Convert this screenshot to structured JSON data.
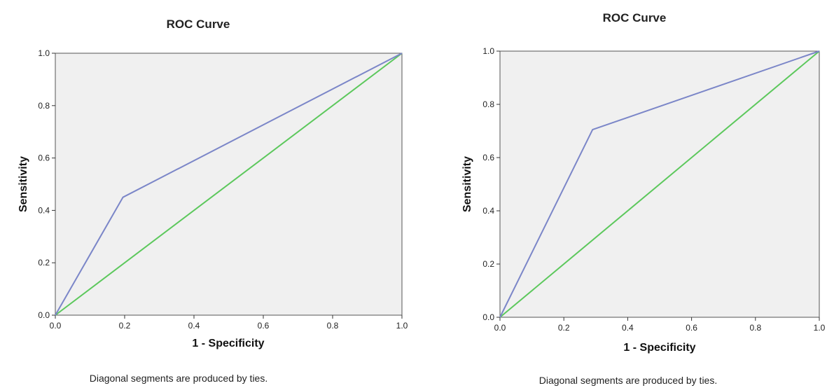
{
  "chart_data": [
    {
      "type": "line",
      "title": "ROC Curve",
      "xlabel": "1 - Specificity",
      "ylabel": "Sensitivity",
      "xlim": [
        0,
        1
      ],
      "ylim": [
        0,
        1
      ],
      "xticks": [
        "0.0",
        "0.2",
        "0.4",
        "0.6",
        "0.8",
        "1.0"
      ],
      "yticks": [
        "0.0",
        "0.2",
        "0.4",
        "0.6",
        "0.8",
        "1.0"
      ],
      "footnote": "Diagonal segments are produced by ties.",
      "grid": false,
      "colors": {
        "curve": "#7b86c8",
        "reference": "#5cc85c",
        "plot_background": "#f0f0f0"
      },
      "series": [
        {
          "x": [
            0.0,
            0.195,
            1.0
          ],
          "y": [
            0.0,
            0.45,
            1.0
          ],
          "color": "#7b86c8"
        },
        {
          "x": [
            0.0,
            1.0
          ],
          "y": [
            0.0,
            1.0
          ],
          "color": "#5cc85c"
        }
      ]
    },
    {
      "type": "line",
      "title": "ROC Curve",
      "xlabel": "1 - Specificity",
      "ylabel": "Sensitivity",
      "xlim": [
        0,
        1
      ],
      "ylim": [
        0,
        1
      ],
      "xticks": [
        "0.0",
        "0.2",
        "0.4",
        "0.6",
        "0.8",
        "1.0"
      ],
      "yticks": [
        "0.0",
        "0.2",
        "0.4",
        "0.6",
        "0.8",
        "1.0"
      ],
      "footnote": "Diagonal segments are produced by ties.",
      "grid": false,
      "colors": {
        "curve": "#7b86c8",
        "reference": "#5cc85c",
        "plot_background": "#f0f0f0"
      },
      "series": [
        {
          "x": [
            0.0,
            0.29,
            1.0
          ],
          "y": [
            0.0,
            0.705,
            1.0
          ],
          "color": "#7b86c8"
        },
        {
          "x": [
            0.0,
            1.0
          ],
          "y": [
            0.0,
            1.0
          ],
          "color": "#5cc85c"
        }
      ]
    }
  ]
}
